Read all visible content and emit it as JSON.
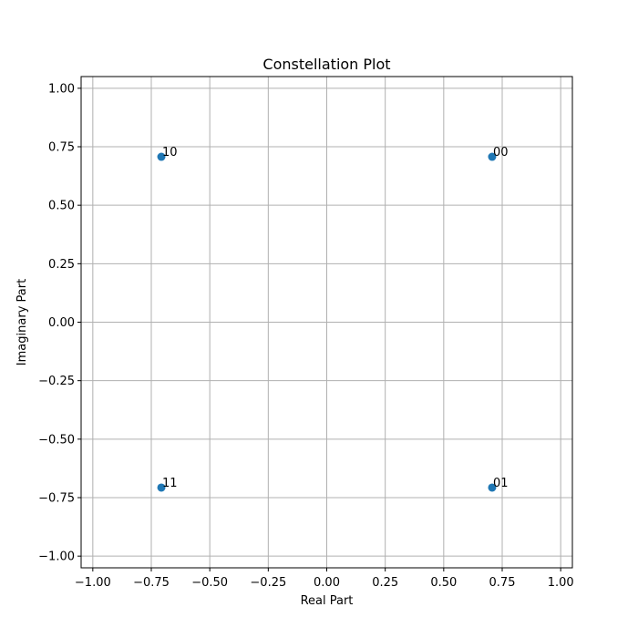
{
  "chart_data": {
    "type": "scatter",
    "title": "Constellation Plot",
    "xlabel": "Real Part",
    "ylabel": "Imaginary Part",
    "xlim": [
      -1.05,
      1.05
    ],
    "ylim": [
      -1.05,
      1.05
    ],
    "grid": true,
    "x_ticks": [
      -1.0,
      -0.75,
      -0.5,
      -0.25,
      0.0,
      0.25,
      0.5,
      0.75,
      1.0
    ],
    "x_tick_labels": [
      "−1.00",
      "−0.75",
      "−0.50",
      "−0.25",
      "0.00",
      "0.25",
      "0.50",
      "0.75",
      "1.00"
    ],
    "y_ticks": [
      1.0,
      0.75,
      0.5,
      0.25,
      0.0,
      -0.25,
      -0.5,
      -0.75,
      -1.0
    ],
    "y_tick_labels": [
      "1.00",
      "0.75",
      "0.50",
      "0.25",
      "0.00",
      "−0.25",
      "−0.50",
      "−0.75",
      "−1.00"
    ],
    "marker_color": "#1f77b4",
    "points": [
      {
        "x": 0.707,
        "y": 0.707,
        "label": "00"
      },
      {
        "x": 0.707,
        "y": -0.707,
        "label": "01"
      },
      {
        "x": -0.707,
        "y": 0.707,
        "label": "10"
      },
      {
        "x": -0.707,
        "y": -0.707,
        "label": "11"
      }
    ]
  }
}
